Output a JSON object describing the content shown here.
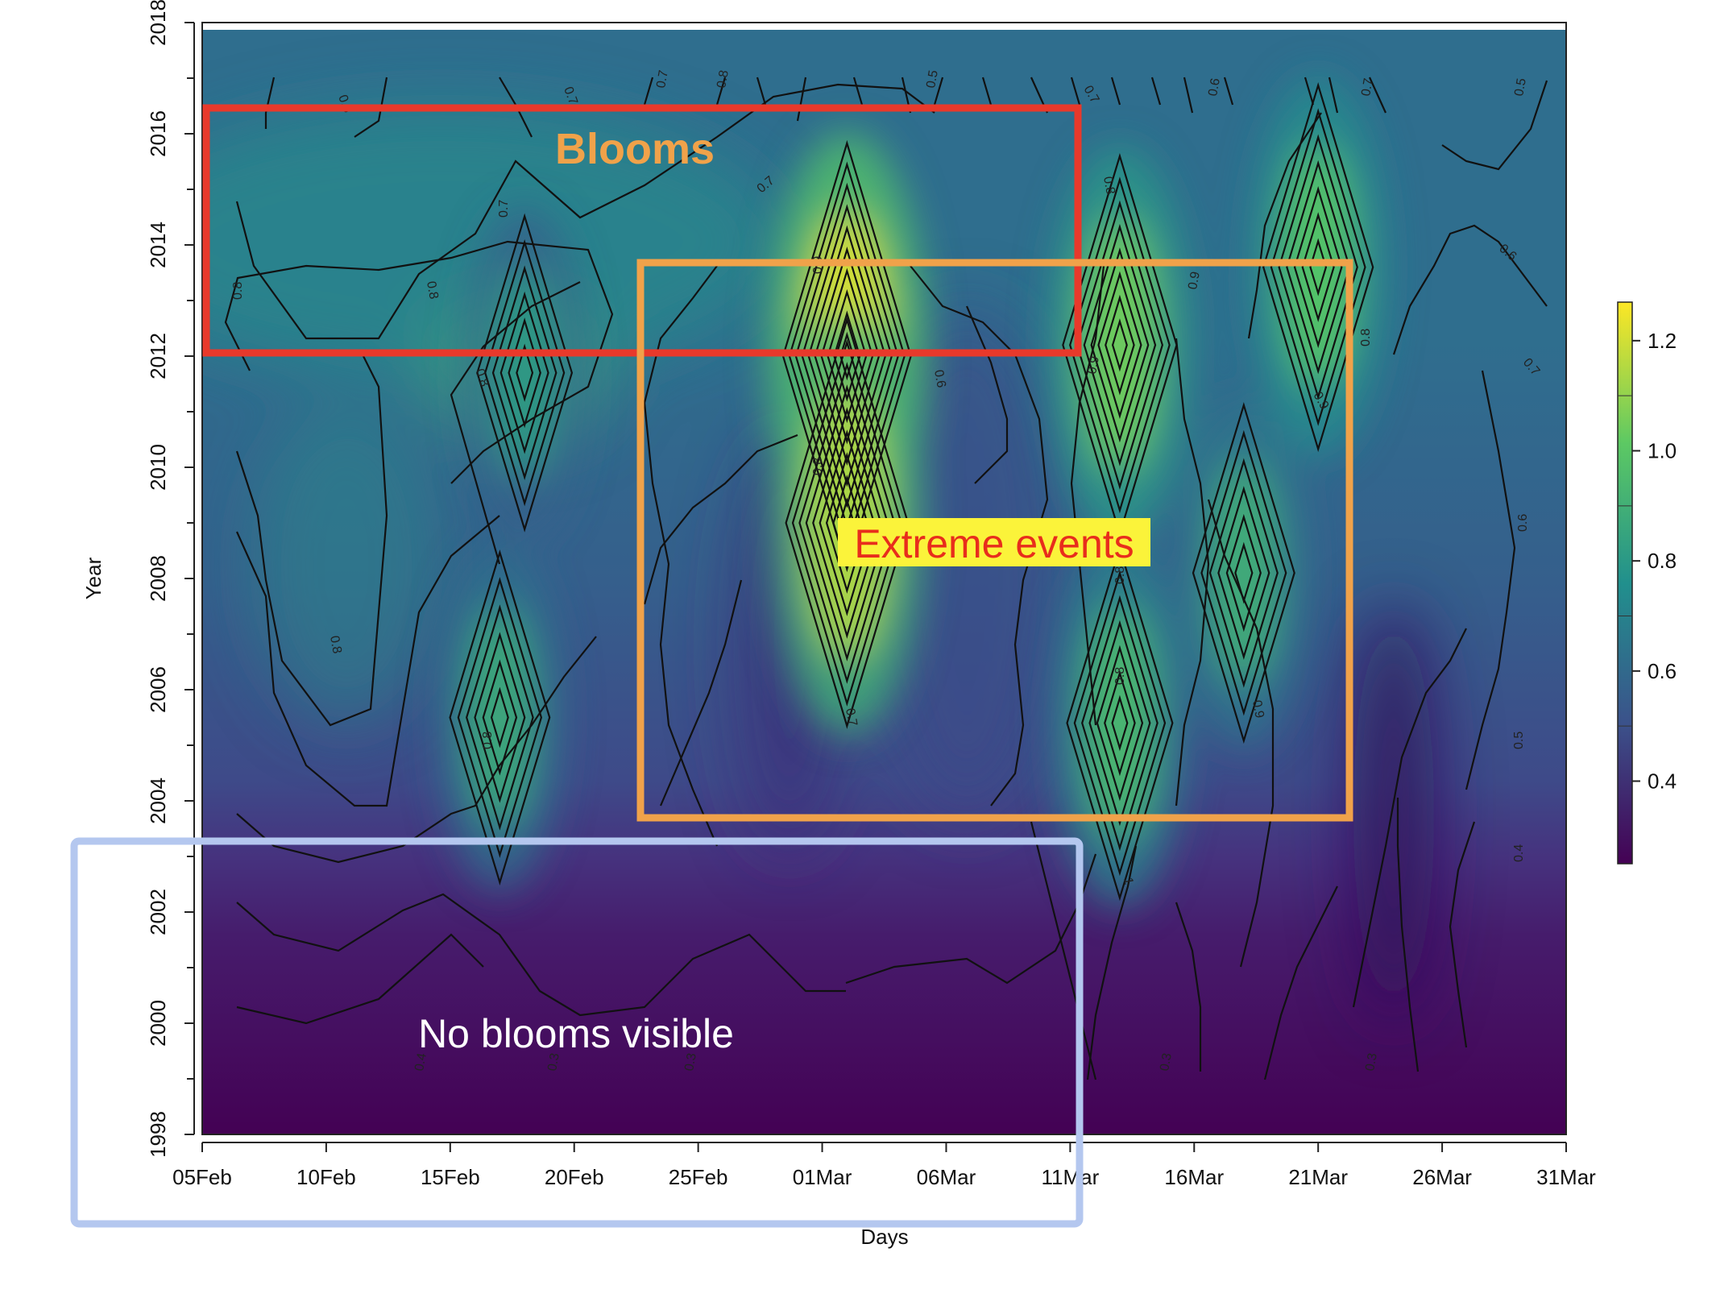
{
  "chart_data": {
    "type": "heatmap",
    "title": "",
    "xlabel": "Days",
    "ylabel": "Year",
    "x_ticks": [
      "05Feb",
      "10Feb",
      "15Feb",
      "20Feb",
      "25Feb",
      "01Mar",
      "06Mar",
      "11Mar",
      "16Mar",
      "21Mar",
      "26Mar",
      "31Mar"
    ],
    "x_range_days": [
      0,
      55
    ],
    "y_ticks": [
      "1998",
      "2000",
      "2002",
      "2004",
      "2006",
      "2008",
      "2010",
      "2012",
      "2014",
      "2016",
      "2018"
    ],
    "y_range": [
      1998,
      2018
    ],
    "colorbar": {
      "ticks": [
        "0.4",
        "0.6",
        "0.8",
        "1.0",
        "1.2"
      ],
      "range": [
        0.25,
        1.27
      ],
      "colormap": "viridis",
      "placement": "right"
    },
    "contour_labels": [
      "0.6",
      "0.7",
      "0.8",
      "0.9",
      "0.5",
      "0.4",
      "0.3",
      "1"
    ],
    "hotspots": [
      {
        "day": 26,
        "year": 2012,
        "value": 1.22
      },
      {
        "day": 26,
        "year": 2009,
        "value": 1.15
      },
      {
        "day": 37,
        "year": 2012.2,
        "value": 1.05
      },
      {
        "day": 37,
        "year": 2005.4,
        "value": 0.95
      },
      {
        "day": 45,
        "year": 2013.6,
        "value": 1.0
      },
      {
        "day": 42,
        "year": 2008.1,
        "value": 0.9
      },
      {
        "day": 12,
        "year": 2005.5,
        "value": 0.88
      },
      {
        "day": 13,
        "year": 2011.7,
        "value": 0.82
      }
    ],
    "annotations": [
      {
        "text": "Blooms",
        "color": "#e8392b"
      },
      {
        "text": "Extreme events",
        "color": "#f0a24a"
      },
      {
        "text": "No blooms visible",
        "color": "#b4c7ef"
      }
    ]
  }
}
